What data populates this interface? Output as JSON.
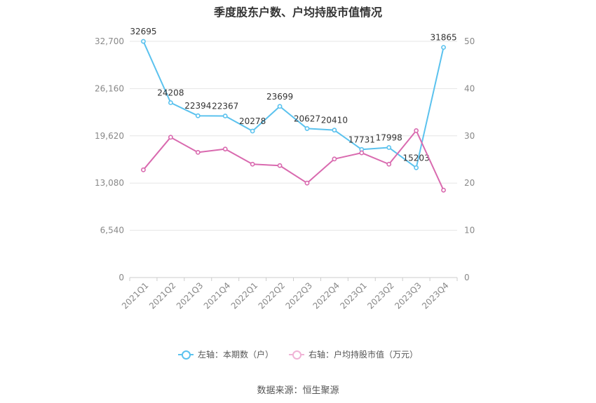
{
  "chart_data": {
    "type": "line",
    "title": "季度股东户数、户均持股市值情况",
    "categories": [
      "2021Q1",
      "2021Q2",
      "2021Q3",
      "2021Q4",
      "2022Q1",
      "2022Q2",
      "2022Q3",
      "2022Q4",
      "2023Q1",
      "2023Q2",
      "2023Q3",
      "2023Q4"
    ],
    "left_axis": {
      "ticks": [
        "0",
        "6,540",
        "13,080",
        "19,620",
        "26,160",
        "32,700"
      ],
      "ylim": [
        0,
        32700
      ]
    },
    "right_axis": {
      "ticks": [
        "0",
        "10",
        "20",
        "30",
        "40",
        "50"
      ],
      "ylim": [
        0,
        50
      ]
    },
    "series": [
      {
        "name": "左轴：本期数（户）",
        "axis": "left",
        "color": "#5bc2ee",
        "values": [
          32695,
          24208,
          22394,
          22367,
          20278,
          23699,
          20627,
          20410,
          17731,
          17998,
          15203,
          31865
        ],
        "labels": [
          "32695",
          "24208",
          "22394",
          "22367",
          "20278",
          "23699",
          "20627",
          "20410",
          "17731",
          "17998",
          "15203",
          "31865"
        ]
      },
      {
        "name": "右轴：户均持股市值（万元）",
        "axis": "right",
        "color": "#d96aaf",
        "values": [
          22.8,
          29.7,
          26.5,
          27.2,
          24.0,
          23.7,
          20.0,
          25.1,
          26.4,
          24.0,
          31.1,
          18.5
        ]
      }
    ],
    "grid": true,
    "legend_position": "bottom"
  },
  "source": "数据来源：恒生聚源"
}
